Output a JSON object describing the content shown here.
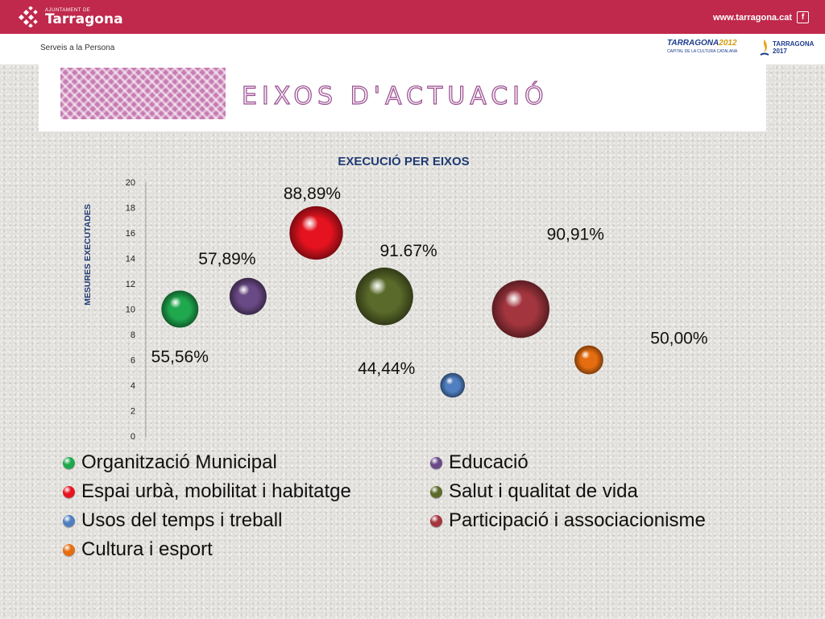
{
  "header": {
    "org_small": "AJUNTAMENT DE",
    "org_name": "Tarragona",
    "url": "www.tarragona.cat",
    "social_icon": "facebook-icon",
    "subtitle": "Serveis a la Persona",
    "logo2012_line1": "TARRAGONA",
    "logo2012_year": "2012",
    "logo2012_line2": "CAPITAL DE LA CULTURA CATALANA",
    "logo2017_name": "TARRAGONA",
    "logo2017_year": "2017"
  },
  "banner": {
    "title": "EIXOS D'ACTUACIÓ"
  },
  "chart_data": {
    "type": "bubble",
    "title": "EXECUCIÓ PER EIXOS",
    "ylabel": "MESURES EXECUTADES",
    "ylim": [
      0,
      20
    ],
    "yticks": [
      0,
      2,
      4,
      6,
      8,
      10,
      12,
      14,
      16,
      18,
      20
    ],
    "series": [
      {
        "name": "Organització Municipal",
        "x": 1,
        "y": 10,
        "size": 9,
        "label": "55,56%",
        "color": "#1fa84e"
      },
      {
        "name": "Educació",
        "x": 2,
        "y": 11,
        "size": 9,
        "label": "57,89%",
        "color": "#6a4a86"
      },
      {
        "name": "Espai urbà, mobilitat i habitatge",
        "x": 3,
        "y": 16,
        "size": 13,
        "label": "88,89%",
        "color": "#e5131f"
      },
      {
        "name": "Salut i qualitat de vida",
        "x": 4,
        "y": 11,
        "size": 14,
        "label": "91.67%",
        "color": "#5a6a2a"
      },
      {
        "name": "Usos del temps i treball",
        "x": 5,
        "y": 4,
        "size": 6,
        "label": "44,44%",
        "color": "#4f7fc0"
      },
      {
        "name": "Participació i associacionisme",
        "x": 6,
        "y": 10,
        "size": 14,
        "label": "90,91%",
        "color": "#a3353e"
      },
      {
        "name": "Cultura i esport",
        "x": 7,
        "y": 6,
        "size": 7,
        "label": "50,00%",
        "color": "#e56d10"
      }
    ]
  }
}
